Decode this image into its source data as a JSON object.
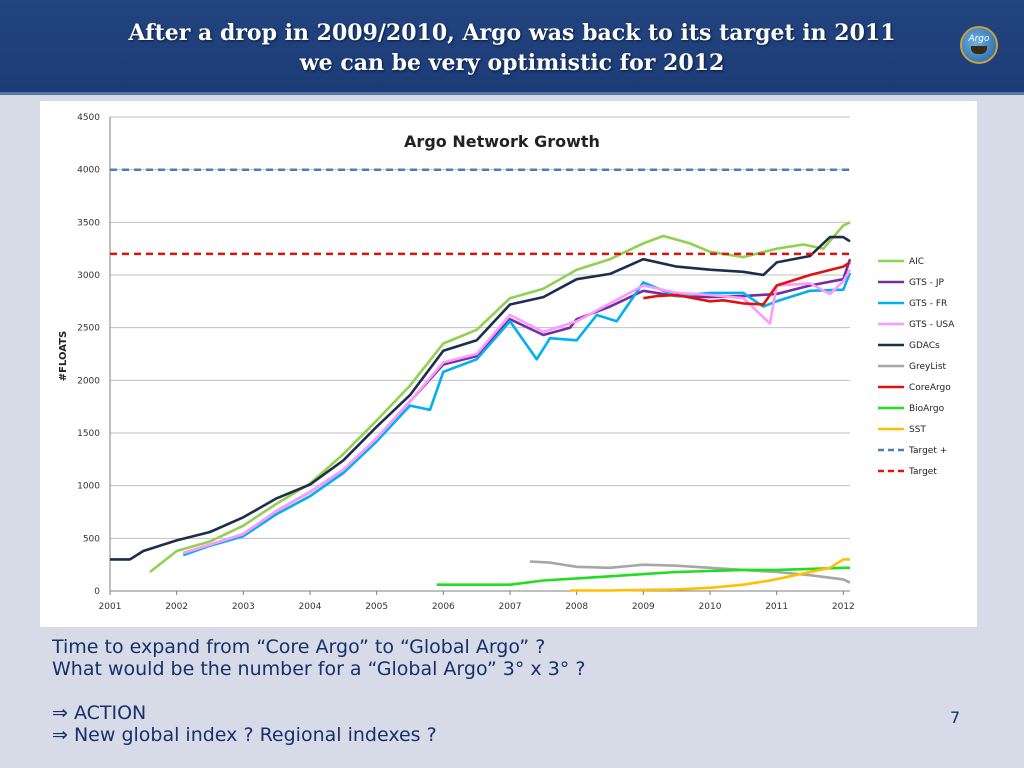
{
  "header": {
    "title_line1": "After a drop in 2009/2010, Argo was back to its target in 2011",
    "title_line2": "we can be very optimistic for 2012",
    "logo_text": "Argo"
  },
  "chart_data": {
    "type": "line",
    "title": "Argo Network Growth",
    "xlabel": "",
    "ylabel": "#FLOATS",
    "xlim": [
      2001,
      2012.1
    ],
    "ylim": [
      0,
      4500
    ],
    "yticks": [
      0,
      500,
      1000,
      1500,
      2000,
      2500,
      3000,
      3500,
      4000,
      4500
    ],
    "xticks": [
      2001,
      2002,
      2003,
      2004,
      2005,
      2006,
      2007,
      2008,
      2009,
      2010,
      2011,
      2012
    ],
    "grid": true,
    "legend_position": "right",
    "series": [
      {
        "name": "AIC",
        "color": "#92d050",
        "style": "solid",
        "x": [
          2001.6,
          2002,
          2002.5,
          2003,
          2003.5,
          2004,
          2004.5,
          2005,
          2005.5,
          2006,
          2006.5,
          2007,
          2007.5,
          2008,
          2008.5,
          2009,
          2009.3,
          2009.7,
          2010,
          2010.5,
          2011,
          2011.4,
          2011.7,
          2012,
          2012.1
        ],
        "y": [
          180,
          380,
          470,
          620,
          830,
          1020,
          1300,
          1620,
          1950,
          2350,
          2480,
          2780,
          2870,
          3050,
          3150,
          3300,
          3370,
          3300,
          3220,
          3170,
          3250,
          3290,
          3250,
          3470,
          3500
        ]
      },
      {
        "name": "GTS - JP",
        "color": "#7030a0",
        "style": "solid",
        "x": [
          2002.1,
          2002.5,
          2003,
          2003.5,
          2004,
          2004.5,
          2005,
          2005.5,
          2006,
          2006.5,
          2007,
          2007.5,
          2007.9,
          2008,
          2008.5,
          2009,
          2009.5,
          2010,
          2010.5,
          2011,
          2011.5,
          2012,
          2012.1
        ],
        "y": [
          360,
          440,
          540,
          760,
          940,
          1150,
          1450,
          1800,
          2150,
          2230,
          2580,
          2430,
          2500,
          2580,
          2700,
          2850,
          2800,
          2790,
          2800,
          2820,
          2900,
          2960,
          3150
        ]
      },
      {
        "name": "GTS - FR",
        "color": "#00b0f0",
        "style": "solid",
        "x": [
          2002.1,
          2002.5,
          2003,
          2003.5,
          2004,
          2004.5,
          2005,
          2005.5,
          2005.8,
          2006,
          2006.5,
          2007,
          2007.4,
          2007.6,
          2008,
          2008.3,
          2008.6,
          2009,
          2009.5,
          2010,
          2010.5,
          2010.8,
          2011,
          2011.5,
          2012,
          2012.1
        ],
        "y": [
          340,
          430,
          520,
          730,
          900,
          1120,
          1420,
          1760,
          1720,
          2080,
          2200,
          2560,
          2200,
          2400,
          2380,
          2620,
          2560,
          2930,
          2800,
          2830,
          2830,
          2700,
          2750,
          2850,
          2860,
          3020
        ]
      },
      {
        "name": "GTS - USA",
        "color": "#ff99ff",
        "style": "solid",
        "x": [
          2002.1,
          2002.5,
          2003,
          2003.5,
          2004,
          2004.5,
          2005,
          2005.5,
          2006,
          2006.5,
          2007,
          2007.5,
          2008,
          2008.5,
          2009,
          2009.5,
          2010,
          2010.5,
          2010.9,
          2011,
          2011.5,
          2011.8,
          2012,
          2012.1
        ],
        "y": [
          360,
          440,
          540,
          760,
          940,
          1150,
          1450,
          1800,
          2170,
          2250,
          2620,
          2460,
          2560,
          2730,
          2900,
          2830,
          2810,
          2780,
          2540,
          2900,
          2920,
          2820,
          2940,
          3050
        ]
      },
      {
        "name": "GDACs",
        "color": "#1f2d4d",
        "style": "solid",
        "x": [
          2001,
          2001.3,
          2001.5,
          2002,
          2002.5,
          2003,
          2003.5,
          2004,
          2004.5,
          2005,
          2005.5,
          2006,
          2006.5,
          2007,
          2007.5,
          2008,
          2008.5,
          2009,
          2009.5,
          2010,
          2010.5,
          2010.8,
          2011,
          2011.5,
          2011.8,
          2012,
          2012.1
        ],
        "y": [
          300,
          300,
          380,
          480,
          560,
          700,
          880,
          1010,
          1240,
          1560,
          1860,
          2280,
          2380,
          2720,
          2790,
          2960,
          3010,
          3150,
          3080,
          3050,
          3030,
          3000,
          3120,
          3180,
          3360,
          3360,
          3320
        ]
      },
      {
        "name": "GreyList",
        "color": "#a6a6a6",
        "style": "solid",
        "x": [
          2007.3,
          2007.6,
          2008,
          2008.5,
          2009,
          2009.5,
          2010,
          2010.5,
          2011,
          2011.5,
          2012,
          2012.1
        ],
        "y": [
          280,
          270,
          230,
          220,
          250,
          240,
          220,
          200,
          180,
          150,
          110,
          80
        ]
      },
      {
        "name": "CoreArgo",
        "color": "#e0120e",
        "style": "solid",
        "x": [
          2009,
          2009.2,
          2009.5,
          2010,
          2010.2,
          2010.5,
          2010.8,
          2011,
          2011.5,
          2012,
          2012.1
        ],
        "y": [
          2780,
          2800,
          2810,
          2750,
          2760,
          2730,
          2720,
          2900,
          3000,
          3080,
          3120
        ]
      },
      {
        "name": "BioArgo",
        "color": "#22dd22",
        "style": "solid",
        "x": [
          2005.9,
          2007,
          2007.5,
          2008,
          2008.5,
          2009,
          2009.5,
          2010,
          2010.5,
          2011,
          2011.5,
          2012,
          2012.1
        ],
        "y": [
          60,
          60,
          100,
          120,
          140,
          160,
          180,
          190,
          200,
          200,
          210,
          220,
          220
        ]
      },
      {
        "name": "SST",
        "color": "#ffc000",
        "style": "solid",
        "x": [
          2007.9,
          2008.5,
          2009,
          2009.5,
          2010,
          2010.5,
          2010.9,
          2011.2,
          2011.5,
          2011.8,
          2012,
          2012.1
        ],
        "y": [
          5,
          5,
          10,
          15,
          30,
          60,
          100,
          140,
          180,
          220,
          300,
          300
        ]
      },
      {
        "name": "Target +",
        "color": "#4a7ebb",
        "style": "dashed",
        "x": [
          2001,
          2012.1
        ],
        "y": [
          4000,
          4000
        ]
      },
      {
        "name": "Target",
        "color": "#e0120e",
        "style": "dashed",
        "x": [
          2001,
          2012.1
        ],
        "y": [
          3200,
          3200
        ]
      }
    ]
  },
  "notes": {
    "line1": "Time to expand from “Core Argo” to “Global Argo” ?",
    "line2": "What would be the number for a “Global Argo” 3° x 3° ?",
    "line3": "⇒ ACTION",
    "line4": "⇒ New global index ?  Regional indexes ?"
  },
  "page_number": "7"
}
